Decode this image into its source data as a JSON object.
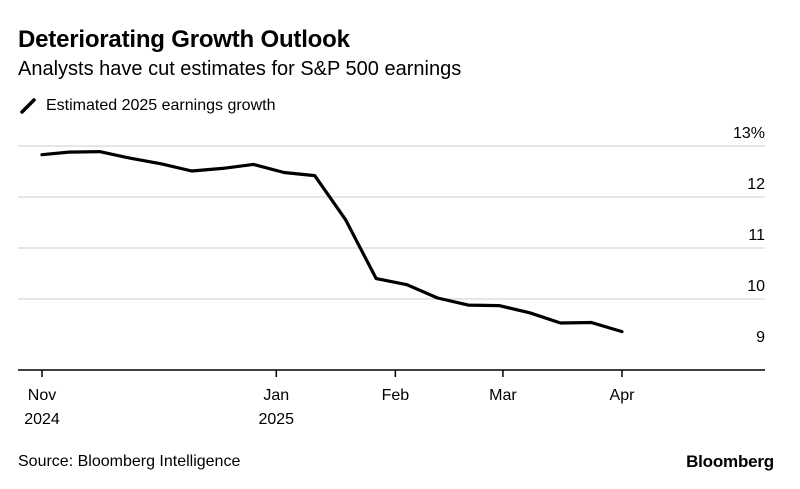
{
  "title": "Deteriorating Growth Outlook",
  "subtitle": "Analysts have cut estimates for S&P 500 earnings",
  "source": "Source: Bloomberg Intelligence",
  "brand": "Bloomberg",
  "colors": {
    "line": "#000000",
    "grid": "#cccccc",
    "axis": "#000000"
  },
  "chart_data": {
    "type": "line",
    "title": "Deteriorating Growth Outlook",
    "subtitle": "Analysts have cut estimates for S&P 500 earnings",
    "xlabel": "",
    "ylabel": "",
    "y_unit": "%",
    "ylim": [
      8.9,
      13.0
    ],
    "y_ticks": [
      {
        "value": 13,
        "label": "13%"
      },
      {
        "value": 12,
        "label": "12"
      },
      {
        "value": 11,
        "label": "11"
      },
      {
        "value": 10,
        "label": "10"
      },
      {
        "value": 9,
        "label": "9"
      }
    ],
    "xlim": [
      "2024-11-01",
      "2025-04-26"
    ],
    "x_ticks": [
      {
        "date": "2024-11-01",
        "line1": "Nov",
        "line2": "2024"
      },
      {
        "date": "2025-01-01",
        "line1": "Jan",
        "line2": "2025"
      },
      {
        "date": "2025-02-01",
        "line1": "Feb",
        "line2": ""
      },
      {
        "date": "2025-03-01",
        "line1": "Mar",
        "line2": ""
      },
      {
        "date": "2025-04-01",
        "line1": "Apr",
        "line2": ""
      }
    ],
    "grid": true,
    "legend": "top-left",
    "series": [
      {
        "name": "Estimated 2025 earnings growth",
        "points": [
          {
            "x": "2024-11-01",
            "y": 12.83
          },
          {
            "x": "2024-11-08",
            "y": 12.88
          },
          {
            "x": "2024-11-16",
            "y": 12.89
          },
          {
            "x": "2024-11-24",
            "y": 12.76
          },
          {
            "x": "2024-12-02",
            "y": 12.65
          },
          {
            "x": "2024-12-10",
            "y": 12.51
          },
          {
            "x": "2024-12-18",
            "y": 12.56
          },
          {
            "x": "2024-12-26",
            "y": 12.64
          },
          {
            "x": "2025-01-03",
            "y": 12.48
          },
          {
            "x": "2025-01-11",
            "y": 12.42
          },
          {
            "x": "2025-01-19",
            "y": 11.56
          },
          {
            "x": "2025-01-27",
            "y": 10.4
          },
          {
            "x": "2025-02-04",
            "y": 10.28
          },
          {
            "x": "2025-02-12",
            "y": 10.02
          },
          {
            "x": "2025-02-20",
            "y": 9.88
          },
          {
            "x": "2025-02-28",
            "y": 9.87
          },
          {
            "x": "2025-03-08",
            "y": 9.73
          },
          {
            "x": "2025-03-16",
            "y": 9.53
          },
          {
            "x": "2025-03-24",
            "y": 9.54
          },
          {
            "x": "2025-04-01",
            "y": 9.36
          }
        ]
      }
    ]
  }
}
